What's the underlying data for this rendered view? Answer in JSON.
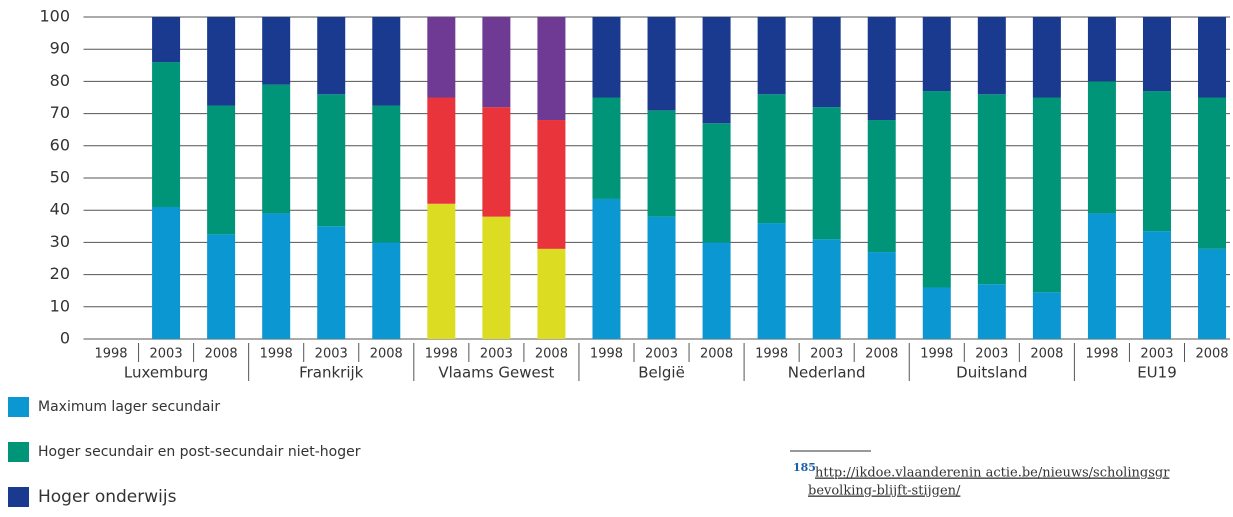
{
  "chart_data": {
    "type": "stacked-bar",
    "categories": [
      "1998",
      "2003",
      "2008",
      "1998",
      "2003",
      "2008",
      "1998",
      "2003",
      "2008",
      "1998",
      "2003",
      "2008",
      "1998",
      "2003",
      "2008",
      "1998",
      "2003",
      "2008",
      "1998",
      "2003",
      "2008"
    ],
    "groups": [
      "Luxemburg",
      "Frankrijk",
      "Vlaams Gewest",
      "België",
      "Nederland",
      "Duitsland",
      "EU19"
    ],
    "ylim": [
      0,
      100
    ],
    "yticks": [
      0,
      10,
      20,
      30,
      40,
      50,
      60,
      70,
      80,
      90,
      100
    ],
    "grid": true,
    "series": [
      {
        "name": "Maximum lager secundair",
        "color": "#0a97d2",
        "values": [
          null,
          41,
          32.5,
          39,
          35,
          30,
          42,
          38,
          28,
          43.5,
          38,
          30,
          36,
          31,
          27,
          16,
          17,
          14.5,
          39,
          33.5,
          28
        ],
        "colors": [
          "#0a97d2",
          "#0a97d2",
          "#0a97d2",
          "#0a97d2",
          "#0a97d2",
          "#0a97d2",
          "#dcdc22",
          "#dcdc22",
          "#dcdc22",
          "#0a97d2",
          "#0a97d2",
          "#0a97d2",
          "#0a97d2",
          "#0a97d2",
          "#0a97d2",
          "#0a97d2",
          "#0a97d2",
          "#0a97d2",
          "#0a97d2",
          "#0a97d2",
          "#0a97d2"
        ]
      },
      {
        "name": "Hoger secundair en post-secundair niet-hoger",
        "color": "#009479",
        "values": [
          null,
          45,
          40,
          40,
          41,
          42.5,
          33,
          34,
          40,
          31.5,
          33,
          37,
          40,
          41,
          41,
          61,
          59,
          60.5,
          41,
          43.5,
          47
        ],
        "colors": [
          "#009479",
          "#009479",
          "#009479",
          "#009479",
          "#009479",
          "#009479",
          "#e8343a",
          "#e8343a",
          "#e8343a",
          "#009479",
          "#009479",
          "#009479",
          "#009479",
          "#009479",
          "#009479",
          "#009479",
          "#009479",
          "#009479",
          "#009479",
          "#009479",
          "#009479"
        ]
      },
      {
        "name": "Hoger onderwijs",
        "color": "#1a3a8f",
        "values": [
          null,
          14,
          27.5,
          21,
          24,
          27.5,
          25,
          28,
          32,
          25,
          29,
          33,
          24,
          28,
          32,
          23,
          24,
          25,
          20,
          23,
          25
        ],
        "colors": [
          "#1a3a8f",
          "#1a3a8f",
          "#1a3a8f",
          "#1a3a8f",
          "#1a3a8f",
          "#1a3a8f",
          "#6e3a93",
          "#6e3a93",
          "#6e3a93",
          "#1a3a8f",
          "#1a3a8f",
          "#1a3a8f",
          "#1a3a8f",
          "#1a3a8f",
          "#1a3a8f",
          "#1a3a8f",
          "#1a3a8f",
          "#1a3a8f",
          "#1a3a8f",
          "#1a3a8f",
          "#1a3a8f"
        ]
      }
    ]
  },
  "footnote": {
    "number": "185",
    "lines": [
      "http://ikdoe.vlaanderenin actie.be/nieuws/scholingsgr",
      "bevolking-blijft-stijgen/"
    ]
  }
}
